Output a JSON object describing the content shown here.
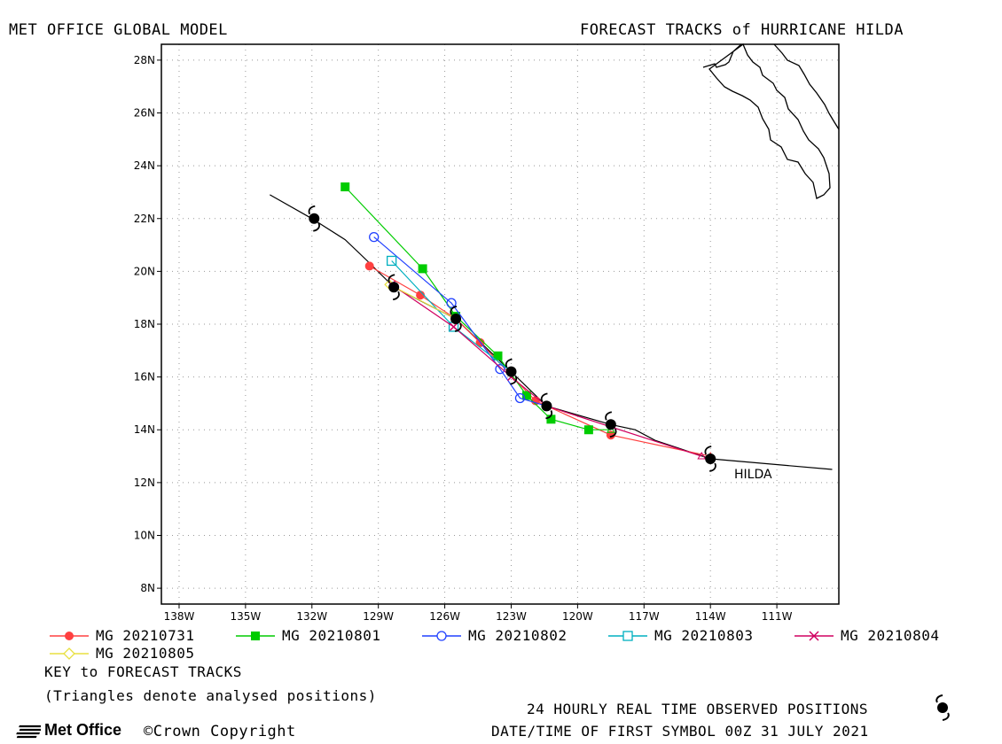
{
  "header": {
    "left_title": "MET OFFICE GLOBAL MODEL",
    "right_title": "FORECAST TRACKS of HURRICANE HILDA"
  },
  "map": {
    "lon_range": [
      -138.8,
      -108.2
    ],
    "lat_range": [
      7.4,
      28.6
    ],
    "lat_ticks": [
      {
        "value": 8,
        "label": "8N"
      },
      {
        "value": 10,
        "label": "10N"
      },
      {
        "value": 12,
        "label": "12N"
      },
      {
        "value": 14,
        "label": "14N"
      },
      {
        "value": 16,
        "label": "16N"
      },
      {
        "value": 18,
        "label": "18N"
      },
      {
        "value": 20,
        "label": "20N"
      },
      {
        "value": 22,
        "label": "22N"
      },
      {
        "value": 24,
        "label": "24N"
      },
      {
        "value": 26,
        "label": "26N"
      },
      {
        "value": 28,
        "label": "28N"
      }
    ],
    "lon_ticks": [
      {
        "value": -138,
        "label": "138W"
      },
      {
        "value": -135,
        "label": "135W"
      },
      {
        "value": -132,
        "label": "132W"
      },
      {
        "value": -129,
        "label": "129W"
      },
      {
        "value": -126,
        "label": "126W"
      },
      {
        "value": -123,
        "label": "123W"
      },
      {
        "value": -120,
        "label": "120W"
      },
      {
        "value": -117,
        "label": "117W"
      },
      {
        "value": -114,
        "label": "114W"
      },
      {
        "value": -111,
        "label": "111W"
      }
    ],
    "grid": true,
    "storm_label": "HILDA",
    "coastline_color": "#000000"
  },
  "chart_data": {
    "type": "line",
    "x_unit": "longitude (deg E)",
    "y_unit": "latitude (deg N)",
    "observed": {
      "color": "#000000",
      "track": [
        [
          -108.5,
          12.5
        ],
        [
          -114.0,
          12.9
        ],
        [
          -116.5,
          13.6
        ],
        [
          -117.4,
          14.0
        ],
        [
          -118.5,
          14.2
        ],
        [
          -121.4,
          14.9
        ],
        [
          -123.0,
          16.2
        ],
        [
          -125.5,
          18.2
        ],
        [
          -128.3,
          19.4
        ],
        [
          -129.5,
          20.4
        ],
        [
          -130.5,
          21.2
        ],
        [
          -132.0,
          22.0
        ],
        [
          -133.9,
          22.9
        ]
      ],
      "symbols": [
        [
          -114.0,
          12.9
        ],
        [
          -118.5,
          14.2
        ],
        [
          -121.4,
          14.9
        ],
        [
          -123.0,
          16.2
        ],
        [
          -125.5,
          18.2
        ],
        [
          -128.3,
          19.4
        ],
        [
          -131.9,
          22.0
        ]
      ]
    },
    "series": [
      {
        "name": "MG 20210731",
        "color": "#ff4040",
        "marker": "circle-filled",
        "points": [
          [
            -114.0,
            13.0
          ],
          [
            -118.5,
            13.8
          ],
          [
            -121.9,
            15.1
          ],
          [
            -124.4,
            17.3
          ],
          [
            -125.5,
            18.2
          ],
          [
            -127.1,
            19.1
          ],
          [
            -129.4,
            20.2
          ]
        ]
      },
      {
        "name": "MG 20210801",
        "color": "#00cc00",
        "marker": "square-filled",
        "points": [
          [
            -118.5,
            14.0
          ],
          [
            -119.5,
            14.0
          ],
          [
            -121.2,
            14.4
          ],
          [
            -122.3,
            15.3
          ],
          [
            -123.6,
            16.8
          ],
          [
            -125.5,
            18.3
          ],
          [
            -127.0,
            20.1
          ],
          [
            -130.5,
            23.2
          ]
        ]
      },
      {
        "name": "MG 20210802",
        "color": "#2040ff",
        "marker": "circle-open",
        "points": [
          [
            -121.4,
            14.9
          ],
          [
            -122.6,
            15.2
          ],
          [
            -123.5,
            16.3
          ],
          [
            -125.7,
            18.8
          ],
          [
            -129.2,
            21.3
          ]
        ]
      },
      {
        "name": "MG 20210803",
        "color": "#00b0c0",
        "marker": "square-open",
        "points": [
          [
            -123.0,
            16.2
          ],
          [
            -125.6,
            17.9
          ],
          [
            -128.4,
            20.4
          ]
        ]
      },
      {
        "name": "MG 20210804",
        "color": "#d00060",
        "marker": "x",
        "points": [
          [
            -114.4,
            13.0
          ],
          [
            -121.4,
            14.9
          ],
          [
            -123.0,
            16.0
          ],
          [
            -125.6,
            17.9
          ],
          [
            -128.4,
            19.5
          ]
        ]
      },
      {
        "name": "MG 20210805",
        "color": "#e8e040",
        "marker": "diamond",
        "points": [
          [
            -125.5,
            18.2
          ],
          [
            -128.5,
            19.5
          ]
        ]
      }
    ]
  },
  "legend": {
    "row1": [
      "MG 20210731",
      "MG 20210801",
      "MG 20210802",
      "MG 20210803",
      "MG 20210804"
    ],
    "row2": [
      "MG 20210805"
    ]
  },
  "footer": {
    "key_title": "KEY to FORECAST TRACKS",
    "triangles_note": "(Triangles denote analysed positions)",
    "observed_note": "24 HOURLY REAL TIME OBSERVED POSITIONS",
    "datetime_note": "DATE/TIME OF FIRST SYMBOL 00Z 31 JULY 2021",
    "logo_text": "Met Office",
    "copyright": "©Crown Copyright"
  }
}
